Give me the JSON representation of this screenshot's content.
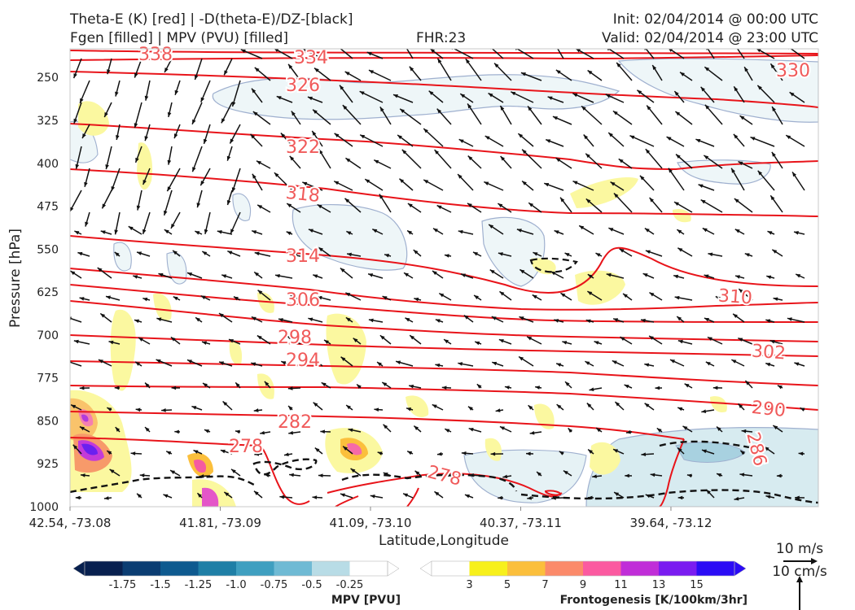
{
  "header": {
    "title_line1": "Theta-E (K) [red] | -D(theta-E)/DZ-[black]",
    "title_line2": "Fgen [filled] | MPV (PVU) [filled]",
    "fhr": "FHR:23",
    "init": "Init: 02/04/2014 @ 00:00 UTC",
    "valid": "Valid: 02/04/2014 @ 23:00 UTC"
  },
  "chart_data": {
    "type": "cross-section",
    "xlabel": "Latitude,Longitude",
    "ylabel": "Pressure [hPa]",
    "x_ticks": [
      "42.54, -73.08",
      "41.81, -73.09",
      "41.09, -73.10",
      "40.37, -73.11",
      "39.64, -73.12"
    ],
    "y_ticks": [
      250,
      325,
      400,
      475,
      550,
      625,
      700,
      775,
      850,
      925,
      1000
    ],
    "ylim": [
      1000,
      200
    ],
    "theta_e_contour_labels": [
      "338",
      "334",
      "330",
      "326",
      "322",
      "318",
      "314",
      "310",
      "306",
      "302",
      "298",
      "294",
      "290",
      "286",
      "282",
      "278",
      "278"
    ],
    "theta_e_color": "#e8141a",
    "label_color": "#f05a5a",
    "wind_scale_labels": [
      "10 m/s",
      "10 cm/s"
    ],
    "mpv_colorbar": {
      "title": "MPV [PVU]",
      "ticks": [
        "-1.75",
        "-1.5",
        "-1.25",
        "-1.0",
        "-0.75",
        "-0.5",
        "-0.25"
      ],
      "colors": [
        "#08204f",
        "#0b3d72",
        "#0e5a8f",
        "#1f7fa6",
        "#3f9fc0",
        "#6fbad4",
        "#b8dce6",
        "#ffffff"
      ]
    },
    "fgen_colorbar": {
      "title": "Frontogenesis [K/100km/3hr]",
      "ticks": [
        "3",
        "5",
        "7",
        "9",
        "11",
        "13",
        "15"
      ],
      "colors": [
        "#ffffff",
        "#f7f01c",
        "#fbbf3c",
        "#fb8a6a",
        "#fb5aa0",
        "#c02ed8",
        "#7a1cf0",
        "#2b0cf5"
      ]
    }
  }
}
